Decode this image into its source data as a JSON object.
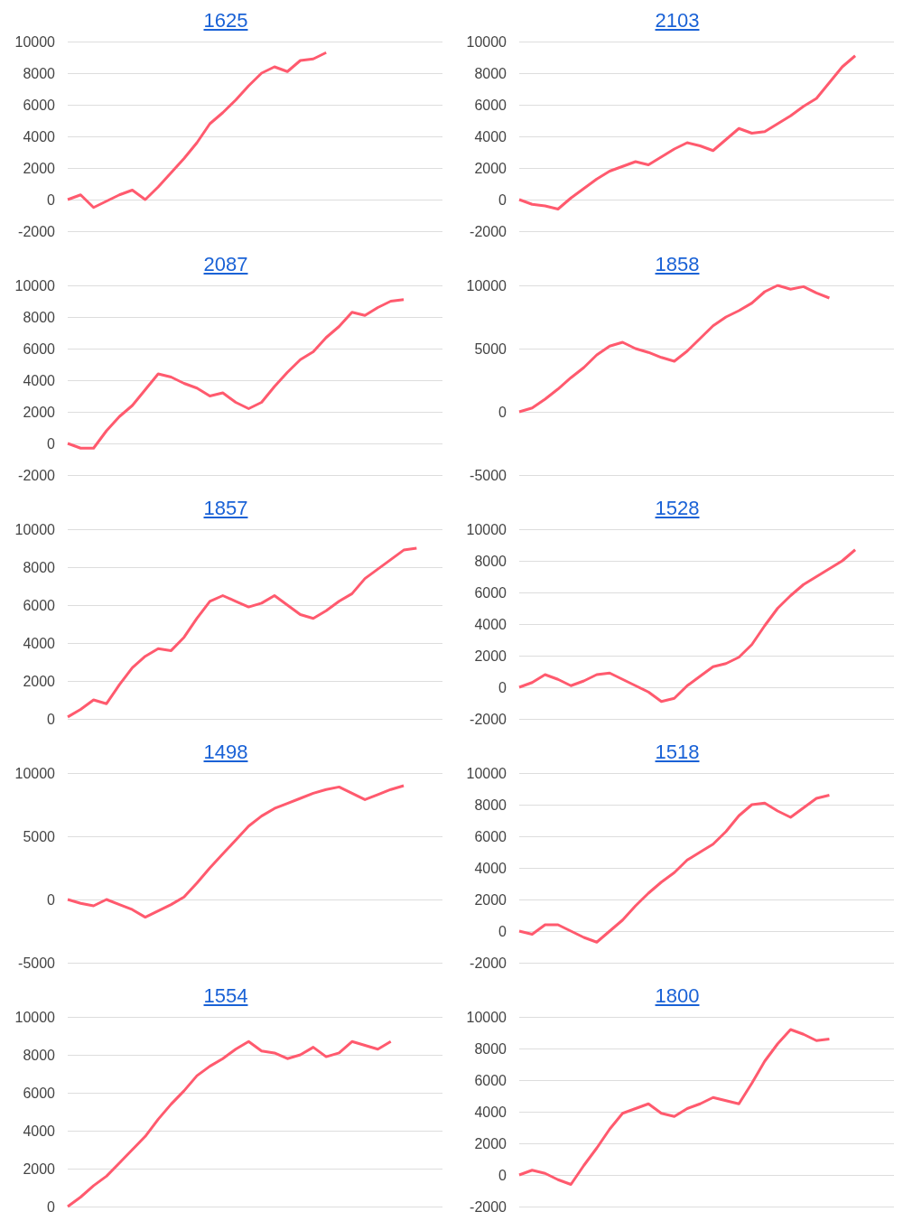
{
  "chart_data": [
    {
      "type": "line",
      "title": "1625",
      "categories": [
        null,
        null,
        null,
        null,
        null,
        null,
        null,
        null,
        null,
        null,
        null,
        null,
        null,
        null,
        null,
        null,
        null,
        null,
        null,
        null,
        null,
        null,
        null,
        null,
        null,
        null,
        null,
        null,
        null,
        null
      ],
      "series": [
        {
          "color": "#ff5a6e",
          "values": [
            0,
            300,
            -500,
            -100,
            300,
            600,
            0,
            800,
            1700,
            2600,
            3600,
            4800,
            5500,
            6300,
            7200,
            8000,
            8400,
            8100,
            8800,
            8900,
            9300,
            null,
            null,
            null,
            null,
            null,
            null,
            null,
            null,
            null
          ]
        }
      ],
      "ylim": [
        -2000,
        10000
      ],
      "yticks": [
        -2000,
        0,
        2000,
        4000,
        6000,
        8000,
        10000
      ],
      "grid": "y",
      "tick_labels": "y",
      "marker": "none"
    },
    {
      "type": "line",
      "title": "2103",
      "categories": [
        null,
        null,
        null,
        null,
        null,
        null,
        null,
        null,
        null,
        null,
        null,
        null,
        null,
        null,
        null,
        null,
        null,
        null,
        null,
        null,
        null,
        null,
        null,
        null,
        null,
        null,
        null,
        null,
        null,
        null
      ],
      "series": [
        {
          "color": "#ff5a6e",
          "values": [
            0,
            -300,
            -400,
            -600,
            100,
            700,
            1300,
            1800,
            2100,
            2400,
            2200,
            2700,
            3200,
            3600,
            3400,
            3100,
            3800,
            4500,
            4200,
            4300,
            4800,
            5300,
            5900,
            6400,
            7400,
            8400,
            9100,
            null,
            null,
            null
          ]
        }
      ],
      "ylim": [
        -2000,
        10000
      ],
      "yticks": [
        -2000,
        0,
        2000,
        4000,
        6000,
        8000,
        10000
      ],
      "grid": "y",
      "tick_labels": "y",
      "marker": "none"
    },
    {
      "type": "line",
      "title": "2087",
      "categories": [
        null,
        null,
        null,
        null,
        null,
        null,
        null,
        null,
        null,
        null,
        null,
        null,
        null,
        null,
        null,
        null,
        null,
        null,
        null,
        null,
        null,
        null,
        null,
        null,
        null,
        null,
        null,
        null,
        null,
        null
      ],
      "series": [
        {
          "color": "#ff5a6e",
          "values": [
            0,
            -300,
            -300,
            800,
            1700,
            2400,
            3400,
            4400,
            4200,
            3800,
            3500,
            3000,
            3200,
            2600,
            2200,
            2600,
            3600,
            4500,
            5300,
            5800,
            6700,
            7400,
            8300,
            8100,
            8600,
            9000,
            9100,
            null,
            null,
            null
          ]
        }
      ],
      "ylim": [
        -2000,
        10000
      ],
      "yticks": [
        -2000,
        0,
        2000,
        4000,
        6000,
        8000,
        10000
      ],
      "grid": "y",
      "tick_labels": "y",
      "marker": "none"
    },
    {
      "type": "line",
      "title": "1858",
      "categories": [
        null,
        null,
        null,
        null,
        null,
        null,
        null,
        null,
        null,
        null,
        null,
        null,
        null,
        null,
        null,
        null,
        null,
        null,
        null,
        null,
        null,
        null,
        null,
        null,
        null,
        null,
        null,
        null,
        null,
        null
      ],
      "series": [
        {
          "color": "#ff5a6e",
          "values": [
            0,
            300,
            1000,
            1800,
            2700,
            3500,
            4500,
            5200,
            5500,
            5000,
            4700,
            4300,
            4000,
            4800,
            5800,
            6800,
            7500,
            8000,
            8600,
            9500,
            10000,
            9700,
            9900,
            9400,
            9000,
            null,
            null,
            null,
            null,
            null
          ]
        }
      ],
      "ylim": [
        -5000,
        10000
      ],
      "yticks": [
        -5000,
        0,
        5000,
        10000
      ],
      "grid": "y",
      "tick_labels": "y",
      "marker": "none"
    },
    {
      "type": "line",
      "title": "1857",
      "categories": [
        null,
        null,
        null,
        null,
        null,
        null,
        null,
        null,
        null,
        null,
        null,
        null,
        null,
        null,
        null,
        null,
        null,
        null,
        null,
        null,
        null,
        null,
        null,
        null,
        null,
        null,
        null,
        null,
        null,
        null
      ],
      "series": [
        {
          "color": "#ff5a6e",
          "values": [
            100,
            500,
            1000,
            800,
            1800,
            2700,
            3300,
            3700,
            3600,
            4300,
            5300,
            6200,
            6500,
            6200,
            5900,
            6100,
            6500,
            6000,
            5500,
            5300,
            5700,
            6200,
            6600,
            7400,
            7900,
            8400,
            8900,
            9000,
            null,
            null
          ]
        }
      ],
      "ylim": [
        0,
        10000
      ],
      "yticks": [
        0,
        2000,
        4000,
        6000,
        8000,
        10000
      ],
      "grid": "y",
      "tick_labels": "y",
      "marker": "none"
    },
    {
      "type": "line",
      "title": "1528",
      "categories": [
        null,
        null,
        null,
        null,
        null,
        null,
        null,
        null,
        null,
        null,
        null,
        null,
        null,
        null,
        null,
        null,
        null,
        null,
        null,
        null,
        null,
        null,
        null,
        null,
        null,
        null,
        null,
        null,
        null,
        null
      ],
      "series": [
        {
          "color": "#ff5a6e",
          "values": [
            0,
            300,
            800,
            500,
            100,
            400,
            800,
            900,
            500,
            100,
            -300,
            -900,
            -700,
            100,
            700,
            1300,
            1500,
            1900,
            2700,
            3900,
            5000,
            5800,
            6500,
            7000,
            7500,
            8000,
            8700,
            null,
            null,
            null
          ]
        }
      ],
      "ylim": [
        -2000,
        10000
      ],
      "yticks": [
        -2000,
        0,
        2000,
        4000,
        6000,
        8000,
        10000
      ],
      "grid": "y",
      "tick_labels": "y",
      "marker": "none"
    },
    {
      "type": "line",
      "title": "1498",
      "categories": [
        null,
        null,
        null,
        null,
        null,
        null,
        null,
        null,
        null,
        null,
        null,
        null,
        null,
        null,
        null,
        null,
        null,
        null,
        null,
        null,
        null,
        null,
        null,
        null,
        null,
        null,
        null,
        null,
        null,
        null
      ],
      "series": [
        {
          "color": "#ff5a6e",
          "values": [
            0,
            -300,
            -500,
            0,
            -400,
            -800,
            -1400,
            -900,
            -400,
            200,
            1300,
            2500,
            3600,
            4700,
            5800,
            6600,
            7200,
            7600,
            8000,
            8400,
            8700,
            8900,
            8400,
            7900,
            8300,
            8700,
            9000,
            null,
            null,
            null
          ]
        }
      ],
      "ylim": [
        -5000,
        10000
      ],
      "yticks": [
        -5000,
        0,
        5000,
        10000
      ],
      "grid": "y",
      "tick_labels": "y",
      "marker": "none"
    },
    {
      "type": "line",
      "title": "1518",
      "categories": [
        null,
        null,
        null,
        null,
        null,
        null,
        null,
        null,
        null,
        null,
        null,
        null,
        null,
        null,
        null,
        null,
        null,
        null,
        null,
        null,
        null,
        null,
        null,
        null,
        null,
        null,
        null,
        null,
        null,
        null
      ],
      "series": [
        {
          "color": "#ff5a6e",
          "values": [
            0,
            -200,
            400,
            400,
            0,
            -400,
            -700,
            0,
            700,
            1600,
            2400,
            3100,
            3700,
            4500,
            5000,
            5500,
            6300,
            7300,
            8000,
            8100,
            7600,
            7200,
            7800,
            8400,
            8600,
            null,
            null,
            null,
            null,
            null
          ]
        }
      ],
      "ylim": [
        -2000,
        10000
      ],
      "yticks": [
        -2000,
        0,
        2000,
        4000,
        6000,
        8000,
        10000
      ],
      "grid": "y",
      "tick_labels": "y",
      "marker": "none"
    },
    {
      "type": "line",
      "title": "1554",
      "categories": [
        null,
        null,
        null,
        null,
        null,
        null,
        null,
        null,
        null,
        null,
        null,
        null,
        null,
        null,
        null,
        null,
        null,
        null,
        null,
        null,
        null,
        null,
        null,
        null,
        null,
        null,
        null,
        null,
        null,
        null
      ],
      "series": [
        {
          "color": "#ff5a6e",
          "values": [
            0,
            500,
            1100,
            1600,
            2300,
            3000,
            3700,
            4600,
            5400,
            6100,
            6900,
            7400,
            7800,
            8300,
            8700,
            8200,
            8100,
            7800,
            8000,
            8400,
            7900,
            8100,
            8700,
            8500,
            8300,
            8700,
            null,
            null,
            null,
            null
          ]
        }
      ],
      "ylim": [
        0,
        10000
      ],
      "yticks": [
        0,
        2000,
        4000,
        6000,
        8000,
        10000
      ],
      "grid": "y",
      "tick_labels": "y",
      "marker": "none"
    },
    {
      "type": "line",
      "title": "1800",
      "categories": [
        null,
        null,
        null,
        null,
        null,
        null,
        null,
        null,
        null,
        null,
        null,
        null,
        null,
        null,
        null,
        null,
        null,
        null,
        null,
        null,
        null,
        null,
        null,
        null,
        null,
        null,
        null,
        null,
        null,
        null
      ],
      "series": [
        {
          "color": "#ff5a6e",
          "values": [
            0,
            300,
            100,
            -300,
            -600,
            600,
            1700,
            2900,
            3900,
            4200,
            4500,
            3900,
            3700,
            4200,
            4500,
            4900,
            4700,
            4500,
            5800,
            7200,
            8300,
            9200,
            8900,
            8500,
            8600,
            null,
            null,
            null,
            null,
            null
          ]
        }
      ],
      "ylim": [
        -2000,
        10000
      ],
      "yticks": [
        -2000,
        0,
        2000,
        4000,
        6000,
        8000,
        10000
      ],
      "grid": "y",
      "tick_labels": "y",
      "marker": "none"
    }
  ]
}
